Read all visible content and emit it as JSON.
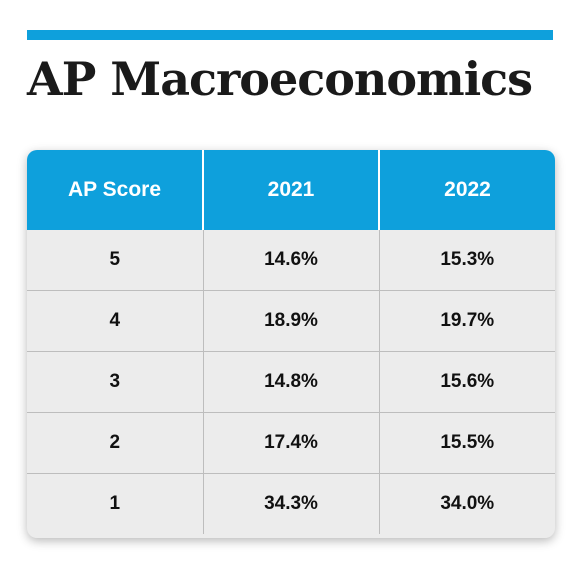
{
  "title": "AP Macroeconomics",
  "colors": {
    "accent": "#0ea0dc",
    "header_text": "#ffffff",
    "body_bg": "#ececec",
    "text": "#111111"
  },
  "table": {
    "headers": [
      "AP Score",
      "2021",
      "2022"
    ],
    "rows": [
      [
        "5",
        "14.6%",
        "15.3%"
      ],
      [
        "4",
        "18.9%",
        "19.7%"
      ],
      [
        "3",
        "14.8%",
        "15.6%"
      ],
      [
        "2",
        "17.4%",
        "15.5%"
      ],
      [
        "1",
        "34.3%",
        "34.0%"
      ]
    ]
  }
}
